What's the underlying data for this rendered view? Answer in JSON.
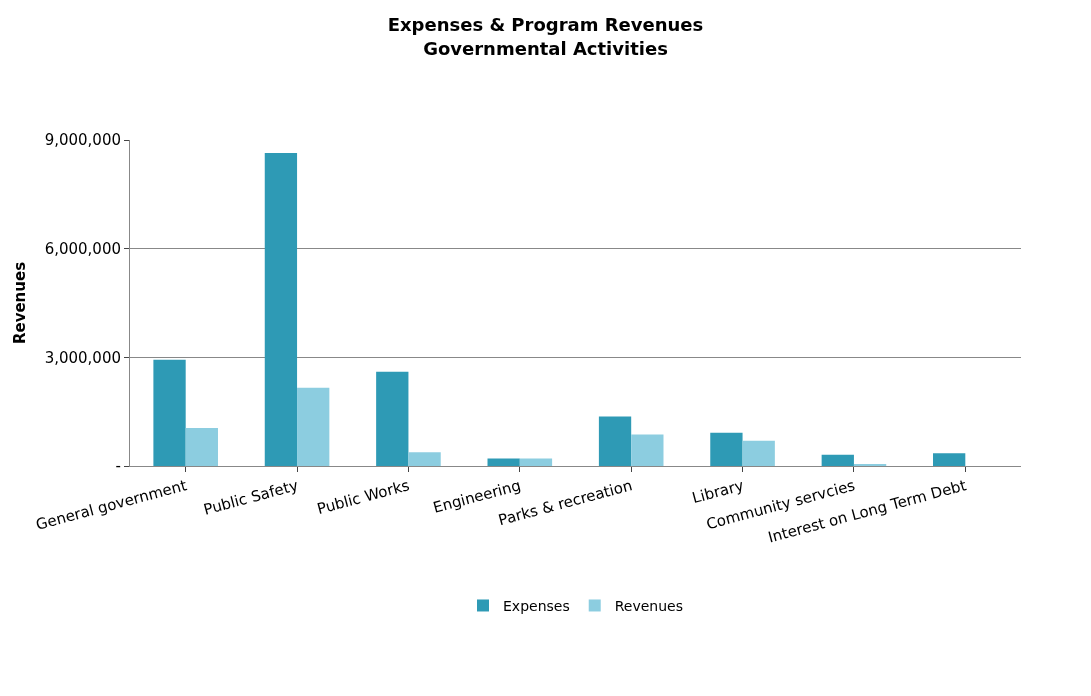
{
  "chart_data": {
    "type": "bar",
    "title": "Expenses & Program Revenues\nGovernmental Activities",
    "ylabel": "Revenues",
    "categories": [
      "General government",
      "Public Safety",
      "Public Works",
      "Engineering",
      "Parks & recreation",
      "Library",
      "Community servcies",
      "Interest on Long Term Debt"
    ],
    "series": [
      {
        "name": "Expenses",
        "color": "#2e9ab5",
        "values": [
          2930000,
          8640000,
          2600000,
          210000,
          1370000,
          920000,
          310000,
          350000
        ]
      },
      {
        "name": "Revenues",
        "color": "#8ccde0",
        "values": [
          1050000,
          2160000,
          380000,
          210000,
          870000,
          700000,
          50000,
          null
        ]
      }
    ],
    "ylim": [
      0,
      9000000
    ],
    "yticks": [
      {
        "value": 0,
        "label": "-"
      },
      {
        "value": 3000000,
        "label": "3,000,000"
      },
      {
        "value": 6000000,
        "label": "6,000,000"
      },
      {
        "value": 9000000,
        "label": "9,000,000"
      }
    ],
    "grid": "y",
    "legend": "bottom"
  }
}
